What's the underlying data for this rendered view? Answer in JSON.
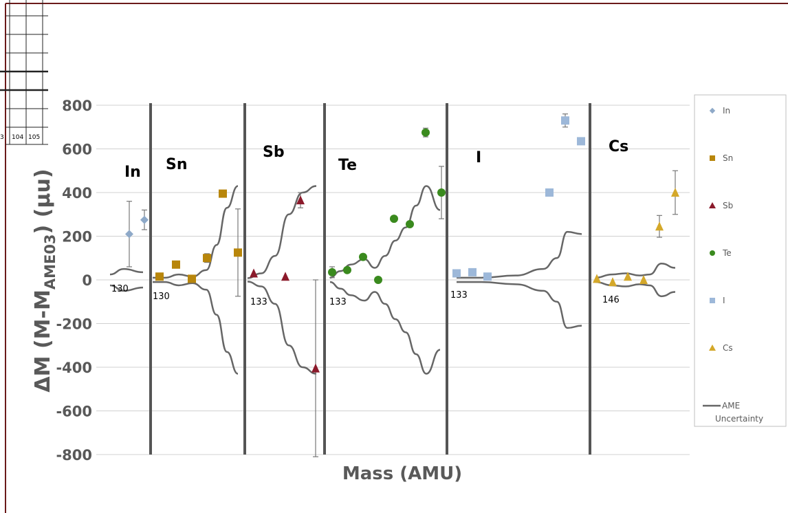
{
  "chart_data": {
    "type": "scatter",
    "title": "",
    "xlabel": "Mass (AMU)",
    "ylabel": {
      "main": "ΔM (M-M",
      "sub": "AME03",
      "tail": ") (μu)"
    },
    "ylim": [
      -800,
      800
    ],
    "yticks": [
      -800,
      -600,
      -400,
      -200,
      0,
      200,
      400,
      600,
      800
    ],
    "grid": true,
    "legend_position": "right",
    "panels": [
      {
        "element": "In",
        "start_label": "130"
      },
      {
        "element": "Sn",
        "start_label": "130"
      },
      {
        "element": "Sb",
        "start_label": "133"
      },
      {
        "element": "Te",
        "start_label": "133"
      },
      {
        "element": "I",
        "start_label": "133"
      },
      {
        "element": "Cs",
        "start_label": "146"
      }
    ],
    "series": [
      {
        "name": "In",
        "color": "#8EA9C8",
        "marker": "diamond",
        "points": [
          {
            "y": 210,
            "err": 150
          },
          {
            "y": 275,
            "err": 45
          }
        ]
      },
      {
        "name": "Sn",
        "color": "#B8860B",
        "marker": "square",
        "points": [
          {
            "y": 15,
            "err": 0
          },
          {
            "y": 70,
            "err": 0
          },
          {
            "y": 5,
            "err": 0
          },
          {
            "y": 100,
            "err": 20
          },
          {
            "y": 395,
            "err": 0
          },
          {
            "y": 125,
            "err": 200
          }
        ]
      },
      {
        "name": "Sb",
        "color": "#8B1A2B",
        "marker": "triangle",
        "points": [
          {
            "y": 30,
            "err": 0
          },
          {
            "y": 15,
            "err": 0
          },
          {
            "y": 365,
            "err": 35
          },
          {
            "y": -405,
            "err": 405
          }
        ]
      },
      {
        "name": "Te",
        "color": "#3A8A1E",
        "marker": "circle",
        "points": [
          {
            "y": 35,
            "err": 25
          },
          {
            "y": 45,
            "err": 0
          },
          {
            "y": 105,
            "err": 0
          },
          {
            "y": 0,
            "err": 0
          },
          {
            "y": 280,
            "err": 0
          },
          {
            "y": 255,
            "err": 0
          },
          {
            "y": 675,
            "err": 20
          },
          {
            "y": 400,
            "err": 120
          }
        ]
      },
      {
        "name": "I",
        "color": "#9DB8D9",
        "marker": "square",
        "points": [
          {
            "y": 30,
            "err": 0
          },
          {
            "y": 35,
            "err": 0
          },
          {
            "y": 15,
            "err": 0
          },
          {
            "y": 400,
            "err": 0
          },
          {
            "y": 730,
            "err": 30
          },
          {
            "y": 635,
            "err": 15
          }
        ]
      },
      {
        "name": "Cs",
        "color": "#D4A82A",
        "marker": "triangle",
        "points": [
          {
            "y": 5,
            "err": 0
          },
          {
            "y": -10,
            "err": 0
          },
          {
            "y": 15,
            "err": 0
          },
          {
            "y": 0,
            "err": 0
          },
          {
            "y": 245,
            "err": 50
          },
          {
            "y": 400,
            "err": 100
          }
        ]
      }
    ],
    "uncertainty_series": {
      "name": "AME Uncertainty",
      "color": "#666666"
    }
  },
  "legend": [
    {
      "label": "In",
      "marker": "diamond",
      "color": "#8EA9C8"
    },
    {
      "label": "Sn",
      "marker": "square",
      "color": "#B8860B"
    },
    {
      "label": "Sb",
      "marker": "triangle",
      "color": "#8B1A2B"
    },
    {
      "label": "Te",
      "marker": "circle",
      "color": "#3A8A1E"
    },
    {
      "label": "I",
      "marker": "square",
      "color": "#9DB8D9"
    },
    {
      "label": "Cs",
      "marker": "triangle",
      "color": "#D4A82A"
    },
    {
      "label": "AME",
      "label2": "Uncertainty",
      "marker": "line",
      "color": "#666666"
    }
  ],
  "fragment": {
    "labels": [
      "3",
      "104",
      "105"
    ],
    "border_color": "#6B1A1A"
  }
}
